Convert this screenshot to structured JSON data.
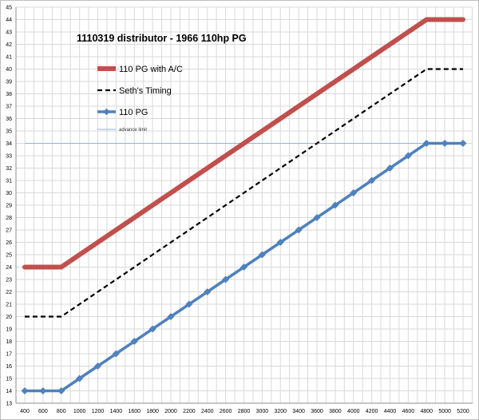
{
  "chart_data": {
    "type": "line",
    "title": "1110319 distributor - 1966 110hp PG",
    "xlabel": "",
    "ylabel": "",
    "x": [
      400,
      600,
      800,
      1000,
      1200,
      1400,
      1600,
      1800,
      2000,
      2200,
      2400,
      2600,
      2800,
      3000,
      3200,
      3400,
      3600,
      3800,
      4000,
      4200,
      4400,
      4600,
      4800,
      5000,
      5200
    ],
    "xlim": [
      400,
      5200
    ],
    "ylim": [
      13,
      45
    ],
    "yticks": [
      13,
      14,
      15,
      16,
      17,
      18,
      19,
      20,
      21,
      22,
      23,
      24,
      25,
      26,
      27,
      28,
      29,
      30,
      31,
      32,
      33,
      34,
      35,
      36,
      37,
      38,
      39,
      40,
      41,
      42,
      43,
      44,
      45
    ],
    "grid": true,
    "legend_position": "top-left",
    "series": [
      {
        "name": "110 PG with A/C",
        "color": "#c0504d",
        "style": "thick",
        "values": [
          24,
          24,
          24,
          25,
          26,
          27,
          28,
          29,
          30,
          31,
          32,
          33,
          34,
          35,
          36,
          37,
          38,
          39,
          40,
          41,
          42,
          43,
          44,
          44,
          44
        ]
      },
      {
        "name": "Seth's Timing",
        "color": "#000000",
        "style": "dashed",
        "values": [
          20,
          20,
          20,
          21,
          22,
          23,
          24,
          25,
          26,
          27,
          28,
          29,
          30,
          31,
          32,
          33,
          34,
          35,
          36,
          37,
          38,
          39,
          40,
          40,
          40
        ]
      },
      {
        "name": "110 PG",
        "color": "#4f81bd",
        "style": "markers",
        "values": [
          14,
          14,
          14,
          15,
          16,
          17,
          18,
          19,
          20,
          21,
          22,
          23,
          24,
          25,
          26,
          27,
          28,
          29,
          30,
          31,
          32,
          33,
          34,
          34,
          34
        ]
      },
      {
        "name": "advance limit",
        "color": "#8eb4e3",
        "style": "thin",
        "values": [
          34,
          34,
          34,
          34,
          34,
          34,
          34,
          34,
          34,
          34,
          34,
          34,
          34,
          34,
          34,
          34,
          34,
          34,
          34,
          34,
          34,
          34,
          34,
          34,
          34
        ]
      }
    ]
  }
}
